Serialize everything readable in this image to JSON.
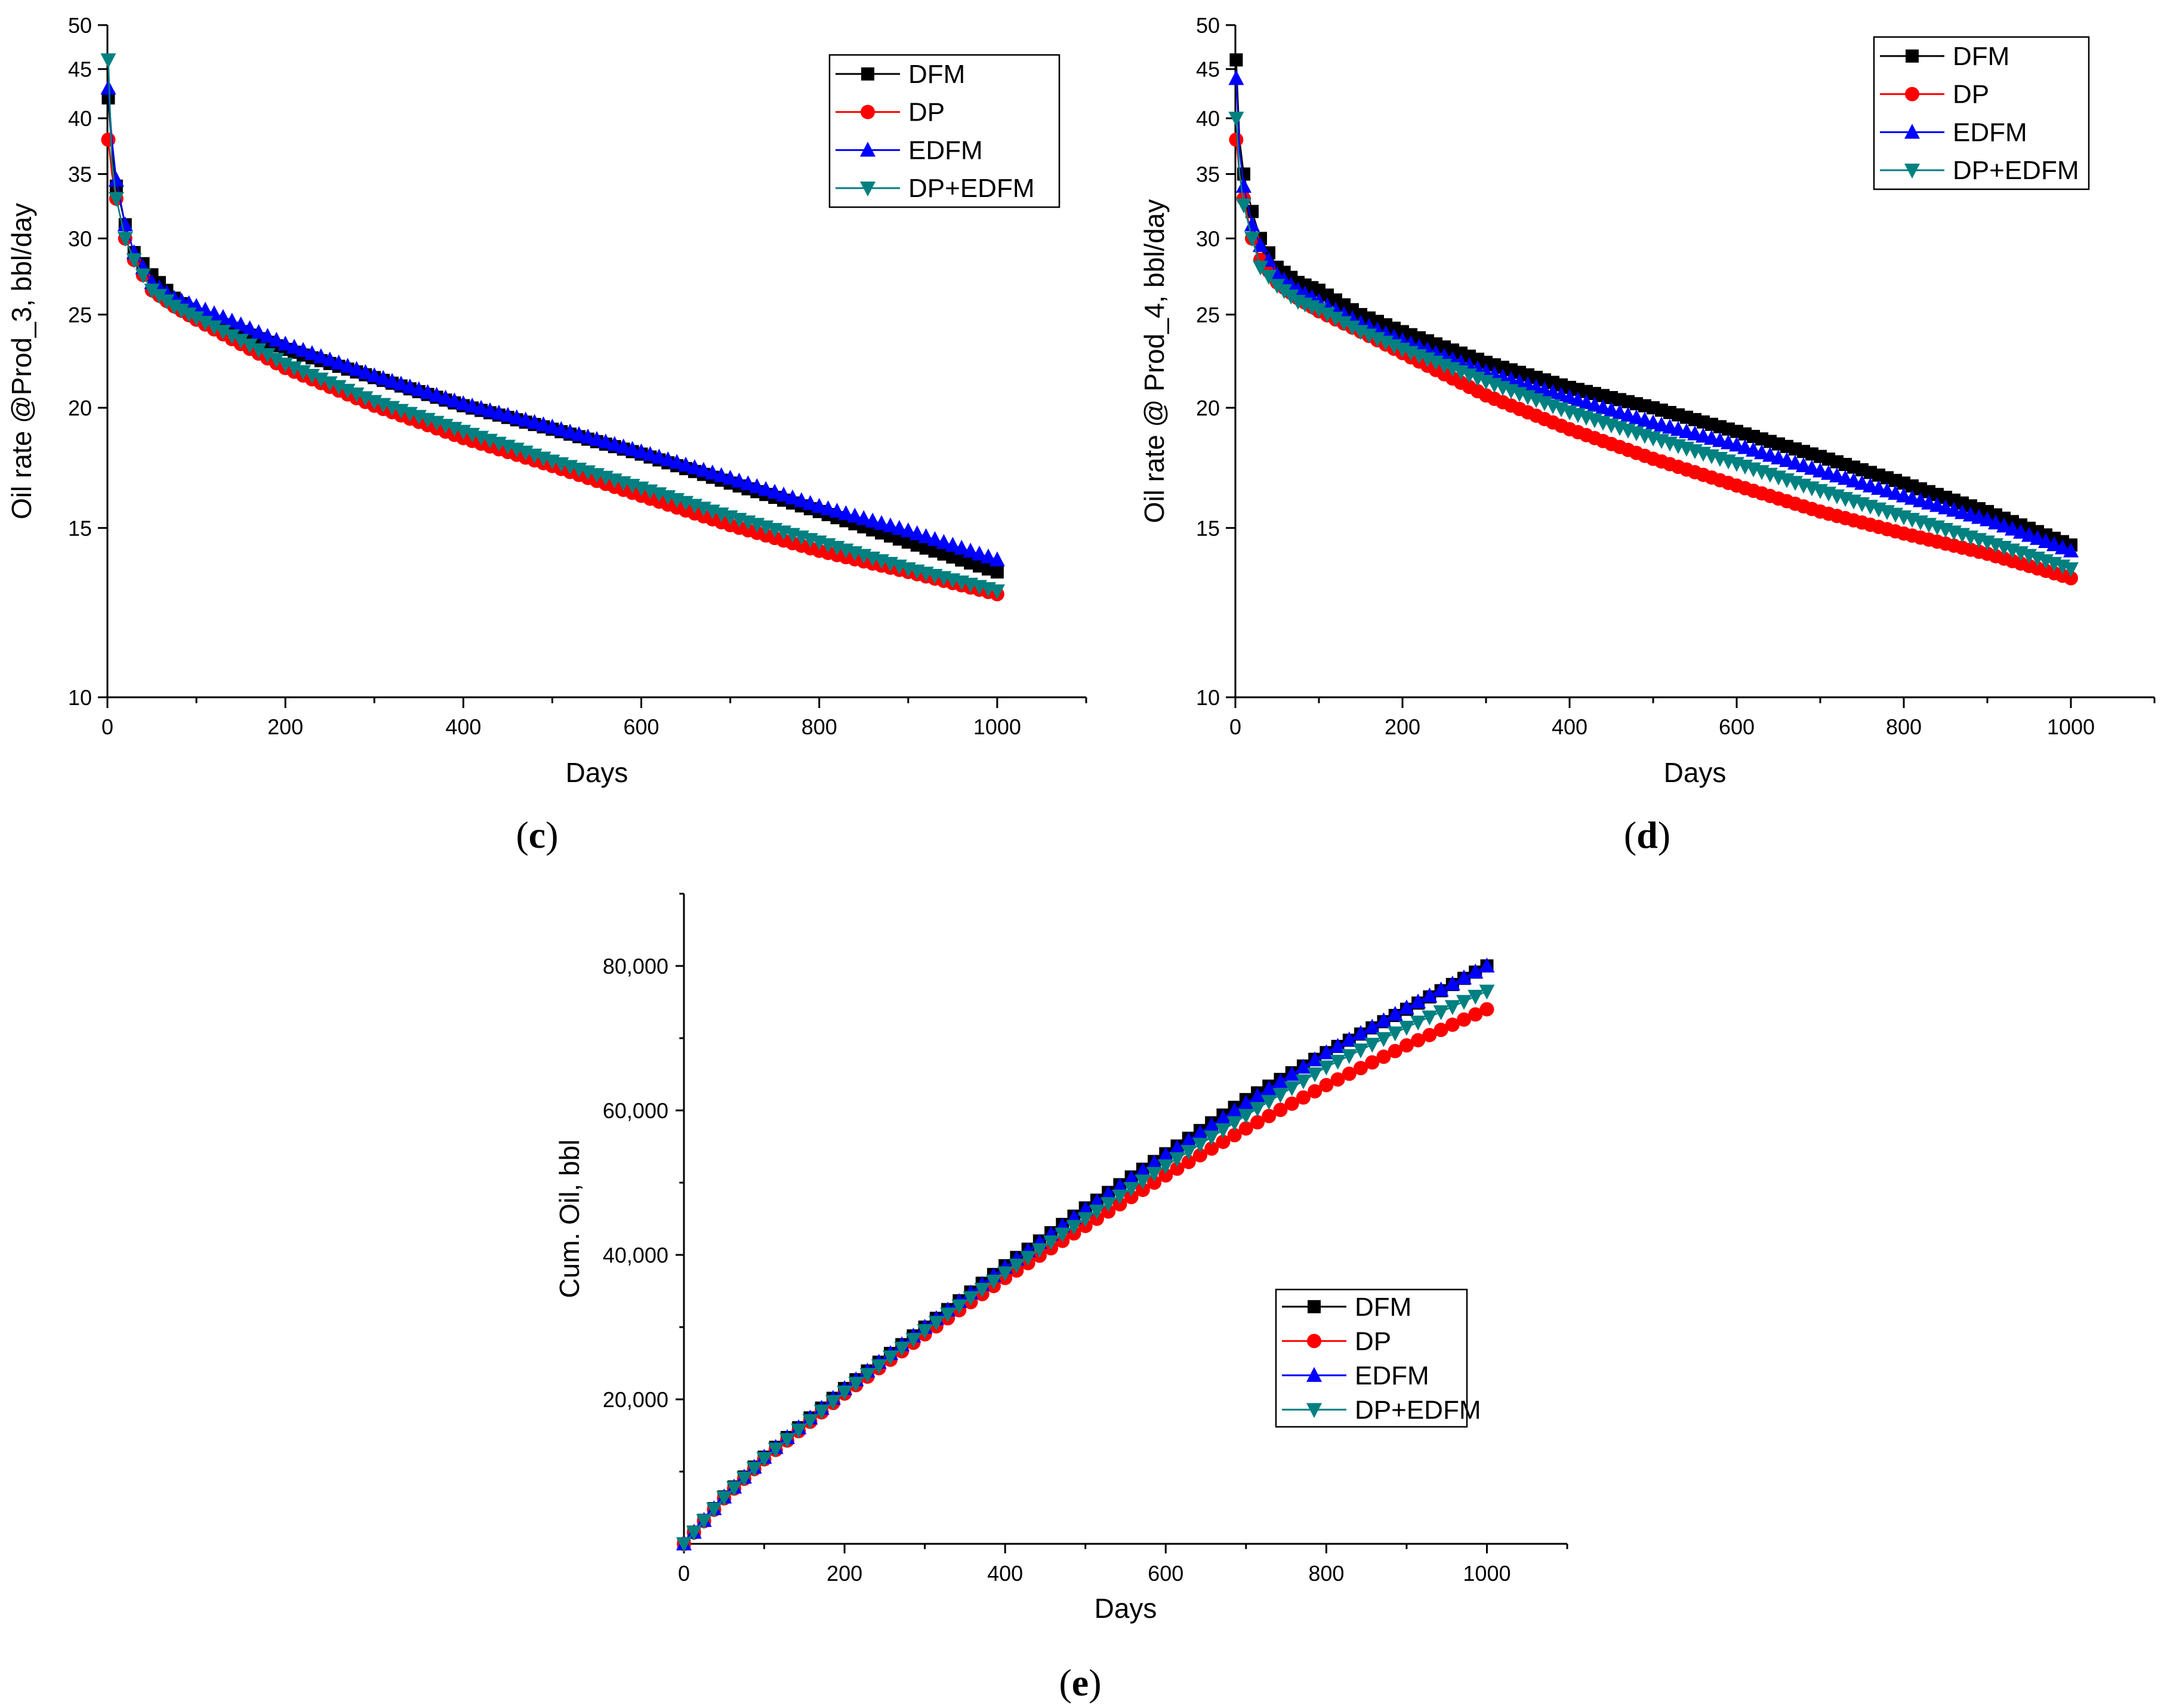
{
  "chart_data": [
    {
      "id": "c",
      "type": "line",
      "panel_label": "c",
      "xlabel": "Days",
      "ylabel": "Oil rate @Prod_3, bbl/day",
      "xlim": [
        0,
        1100
      ],
      "ylim": [
        10,
        50
      ],
      "yscale": "log",
      "xticks": [
        0,
        200,
        400,
        600,
        800,
        1000
      ],
      "xtick_labels": [
        "0",
        "200",
        "400",
        "600",
        "800",
        "1000"
      ],
      "yticks": [
        10,
        15,
        20,
        25,
        30,
        35,
        40,
        45,
        50
      ],
      "ytick_labels": [
        "10",
        "15",
        "20",
        "25",
        "30",
        "35",
        "40",
        "45",
        "50"
      ],
      "legend_position": "top-right",
      "series": [
        {
          "name": "DFM",
          "color": "#000000",
          "marker": "square",
          "x": [
            1,
            5,
            10,
            20,
            30,
            50,
            75,
            100,
            150,
            200,
            300,
            400,
            500,
            600,
            700,
            800,
            900,
            1000
          ],
          "values": [
            42,
            37,
            34,
            31,
            29,
            27.5,
            26,
            25,
            24,
            23,
            21.5,
            20.1,
            19,
            17.9,
            16.7,
            15.6,
            14.5,
            13.5
          ]
        },
        {
          "name": "DP",
          "color": "#ff0000",
          "marker": "circle",
          "x": [
            1,
            5,
            10,
            20,
            30,
            50,
            75,
            100,
            150,
            200,
            300,
            400,
            500,
            600,
            700,
            800,
            900,
            1000
          ],
          "values": [
            38,
            35,
            33,
            30,
            28.5,
            26.5,
            25.5,
            24.7,
            23.3,
            22,
            20.1,
            18.6,
            17.4,
            16.2,
            15.1,
            14.2,
            13.5,
            12.8
          ]
        },
        {
          "name": "EDFM",
          "color": "#0000ff",
          "marker": "triangle-up",
          "x": [
            1,
            5,
            10,
            20,
            30,
            50,
            75,
            100,
            150,
            200,
            300,
            400,
            500,
            600,
            700,
            800,
            900,
            1000
          ],
          "values": [
            43,
            38,
            34.5,
            31,
            29,
            27,
            26,
            25.5,
            24.4,
            23.3,
            21.6,
            20.2,
            19.1,
            18,
            16.9,
            15.8,
            14.9,
            13.9
          ]
        },
        {
          "name": "DP+EDFM",
          "color": "#008080",
          "marker": "triangle-down",
          "x": [
            1,
            5,
            10,
            20,
            30,
            50,
            75,
            100,
            150,
            200,
            300,
            400,
            500,
            600,
            700,
            800,
            900,
            1000
          ],
          "values": [
            46,
            36,
            33,
            30,
            28.5,
            26.5,
            25.5,
            24.8,
            23.5,
            22.2,
            20.3,
            18.9,
            17.6,
            16.5,
            15.4,
            14.5,
            13.6,
            12.9
          ]
        }
      ]
    },
    {
      "id": "d",
      "type": "line",
      "panel_label": "d",
      "xlabel": "Days",
      "ylabel": "Oil rate @ Prod_4, bbl/day",
      "xlim": [
        0,
        1100
      ],
      "ylim": [
        10,
        50
      ],
      "yscale": "log",
      "xticks": [
        0,
        200,
        400,
        600,
        800,
        1000
      ],
      "xtick_labels": [
        "0",
        "200",
        "400",
        "600",
        "800",
        "1000"
      ],
      "yticks": [
        10,
        15,
        20,
        25,
        30,
        35,
        40,
        45,
        50
      ],
      "ytick_labels": [
        "10",
        "15",
        "20",
        "25",
        "30",
        "35",
        "40",
        "45",
        "50"
      ],
      "legend_position": "top-right",
      "series": [
        {
          "name": "DFM",
          "color": "#000000",
          "marker": "square",
          "x": [
            1,
            5,
            10,
            20,
            30,
            50,
            75,
            100,
            150,
            200,
            300,
            400,
            500,
            600,
            700,
            800,
            900,
            1000
          ],
          "values": [
            46,
            38,
            35,
            32,
            30,
            28,
            27,
            26.5,
            25,
            24,
            22.3,
            21,
            20,
            18.9,
            17.8,
            16.7,
            15.6,
            14.4
          ]
        },
        {
          "name": "DP",
          "color": "#ff0000",
          "marker": "circle",
          "x": [
            1,
            5,
            10,
            20,
            30,
            50,
            75,
            100,
            150,
            200,
            300,
            400,
            500,
            600,
            700,
            800,
            900,
            1000
          ],
          "values": [
            38,
            35,
            33,
            30,
            28.5,
            27,
            26,
            25.2,
            24,
            22.8,
            20.6,
            19,
            17.7,
            16.6,
            15.6,
            14.8,
            14.1,
            13.3
          ]
        },
        {
          "name": "EDFM",
          "color": "#0000ff",
          "marker": "triangle-up",
          "x": [
            1,
            5,
            10,
            20,
            30,
            50,
            75,
            100,
            150,
            200,
            300,
            400,
            500,
            600,
            700,
            800,
            900,
            1000
          ],
          "values": [
            44,
            37,
            34,
            31,
            29.5,
            27.5,
            26.5,
            25.8,
            24.5,
            23.5,
            21.8,
            20.5,
            19.3,
            18.3,
            17.2,
            16.2,
            15.3,
            14.2
          ]
        },
        {
          "name": "DP+EDFM",
          "color": "#008080",
          "marker": "triangle-down",
          "x": [
            1,
            5,
            10,
            20,
            30,
            50,
            75,
            100,
            150,
            200,
            300,
            400,
            500,
            600,
            700,
            800,
            900,
            1000
          ],
          "values": [
            40,
            35,
            32.5,
            30,
            28,
            26.8,
            25.8,
            25.3,
            24,
            23,
            21.3,
            19.8,
            18.6,
            17.5,
            16.4,
            15.4,
            14.5,
            13.6
          ]
        }
      ]
    },
    {
      "id": "e",
      "type": "line",
      "panel_label": "e",
      "xlabel": "Days",
      "ylabel": "Cum. Oil, bbl",
      "xlim": [
        0,
        1100
      ],
      "ylim": [
        0,
        90000
      ],
      "yscale": "linear",
      "xticks": [
        0,
        200,
        400,
        600,
        800,
        1000
      ],
      "xtick_labels": [
        "0",
        "200",
        "400",
        "600",
        "800",
        "1000"
      ],
      "yticks": [
        20000,
        40000,
        60000,
        80000
      ],
      "ytick_labels": [
        "20,000",
        "40,000",
        "60,000",
        "80,000"
      ],
      "legend_position": "center-right",
      "series": [
        {
          "name": "DFM",
          "color": "#000000",
          "marker": "square",
          "x": [
            0,
            50,
            100,
            200,
            300,
            400,
            500,
            600,
            700,
            800,
            900,
            1000
          ],
          "values": [
            0,
            6500,
            12000,
            21500,
            30000,
            38500,
            46500,
            54000,
            61500,
            68000,
            74000,
            80000
          ]
        },
        {
          "name": "DP",
          "color": "#ff0000",
          "marker": "circle",
          "x": [
            0,
            50,
            100,
            200,
            300,
            400,
            500,
            600,
            700,
            800,
            900,
            1000
          ],
          "values": [
            0,
            6300,
            11700,
            20800,
            29000,
            36800,
            44000,
            51000,
            57500,
            63500,
            69000,
            74000
          ]
        },
        {
          "name": "EDFM",
          "color": "#0000ff",
          "marker": "triangle-up",
          "x": [
            0,
            50,
            100,
            200,
            300,
            400,
            500,
            600,
            700,
            800,
            900,
            1000
          ],
          "values": [
            0,
            6500,
            12000,
            21500,
            30000,
            38300,
            46300,
            53800,
            61000,
            68000,
            74200,
            80000
          ]
        },
        {
          "name": "DP+EDFM",
          "color": "#008080",
          "marker": "triangle-down",
          "x": [
            0,
            50,
            100,
            200,
            300,
            400,
            500,
            600,
            700,
            800,
            900,
            1000
          ],
          "values": [
            0,
            6400,
            11800,
            21000,
            29500,
            37500,
            45000,
            52300,
            59300,
            66000,
            71500,
            76500
          ]
        }
      ]
    }
  ]
}
